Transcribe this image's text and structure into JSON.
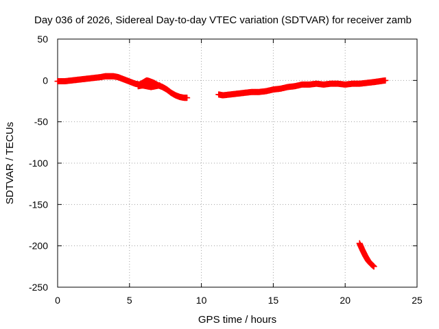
{
  "chart_data": {
    "type": "scatter",
    "title": "Day 036 of 2026, Sidereal Day-to-day VTEC variation (SDTVAR) for receiver zamb",
    "xlabel": "GPS time / hours",
    "ylabel": "SDTVAR / TECUs",
    "xlim": [
      0,
      25
    ],
    "ylim": [
      -250,
      50
    ],
    "xticks": [
      0,
      5,
      10,
      15,
      20,
      25
    ],
    "yticks": [
      50,
      0,
      -50,
      -100,
      -150,
      -200,
      -250
    ],
    "grid": true,
    "marker": "+",
    "color": "#ff0000",
    "series": [
      {
        "name": "SDTVAR",
        "segments": [
          {
            "x": [
              0.0,
              0.5,
              1.0,
              1.5,
              2.0,
              2.5,
              3.0,
              3.3,
              3.6,
              3.9,
              4.2,
              4.5,
              4.8,
              5.1,
              5.4,
              5.7,
              6.0,
              6.2,
              6.4,
              6.7,
              7.0,
              7.3,
              7.6,
              7.9,
              8.2,
              8.5,
              8.8,
              9.0
            ],
            "y": [
              -1,
              -1,
              0,
              1,
              2,
              3,
              4,
              5,
              5,
              5,
              4,
              2,
              0,
              -2,
              -4,
              -5,
              -2,
              0,
              -1,
              -3,
              -6,
              -8,
              -11,
              -15,
              -18,
              -20,
              -21,
              -21
            ]
          },
          {
            "x": [
              5.6,
              5.9,
              6.2,
              6.5,
              6.8,
              7.1
            ],
            "y": [
              -7,
              -6,
              -7,
              -8,
              -7,
              -6
            ]
          },
          {
            "x": [
              11.2,
              11.5,
              12.0,
              12.5,
              13.0,
              13.5,
              14.0,
              14.5,
              15.0,
              15.5,
              16.0,
              16.5,
              17.0,
              17.5,
              18.0,
              18.5,
              19.0,
              19.5,
              20.0,
              20.5,
              21.0,
              21.5,
              22.0,
              22.4,
              22.8
            ],
            "y": [
              -17,
              -18,
              -17,
              -16,
              -15,
              -14,
              -14,
              -13,
              -11,
              -10,
              -8,
              -7,
              -5,
              -5,
              -4,
              -5,
              -4,
              -4,
              -5,
              -4,
              -4,
              -3,
              -2,
              -1,
              0
            ]
          },
          {
            "x": [
              21.0,
              21.2,
              21.4,
              21.6,
              21.8,
              22.0
            ],
            "y": [
              -197,
              -205,
              -212,
              -218,
              -222,
              -225
            ]
          }
        ]
      }
    ]
  }
}
